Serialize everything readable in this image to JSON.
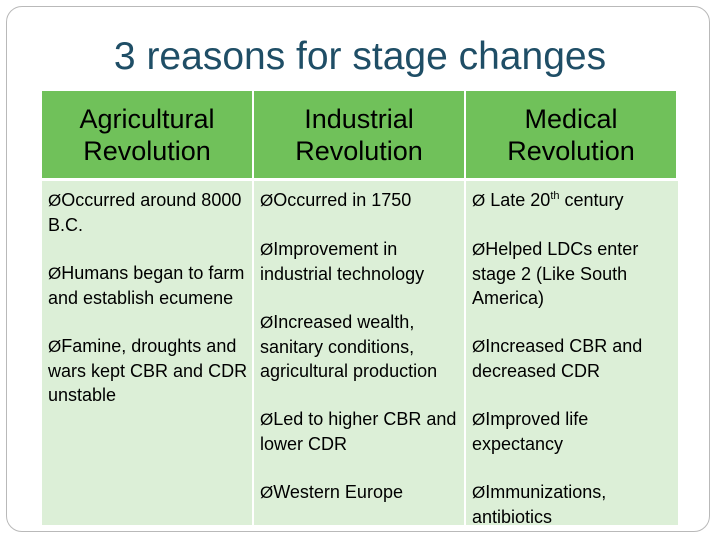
{
  "slide": {
    "title": "3 reasons for stage changes"
  },
  "columns": [
    {
      "header": "Agricultural Revolution",
      "items": [
        "Occurred around 8000 B.C.",
        "Humans began to farm and establish ecumene",
        "Famine, droughts and wars kept CBR and CDR unstable"
      ]
    },
    {
      "header": "Industrial Revolution",
      "items": [
        "Occurred in 1750",
        "Improvement in industrial technology",
        "Increased wealth, sanitary conditions, agricultural production",
        "Led to higher CBR and lower CDR",
        "Western Europe"
      ]
    },
    {
      "header": "Medical Revolution",
      "items": [
        "Late 20",
        "Helped LDCs enter stage 2 (Like South America)",
        "Increased CBR and decreased CDR",
        "Improved life expectancy",
        "Immunizations, antibiotics"
      ],
      "first_item_sup": "th",
      "first_item_suffix": " century"
    }
  ],
  "bullet_glyph": "Ø",
  "colors": {
    "title": "#1f4e66",
    "header_bg": "#70c15a",
    "body_bg": "#dcefd7"
  }
}
